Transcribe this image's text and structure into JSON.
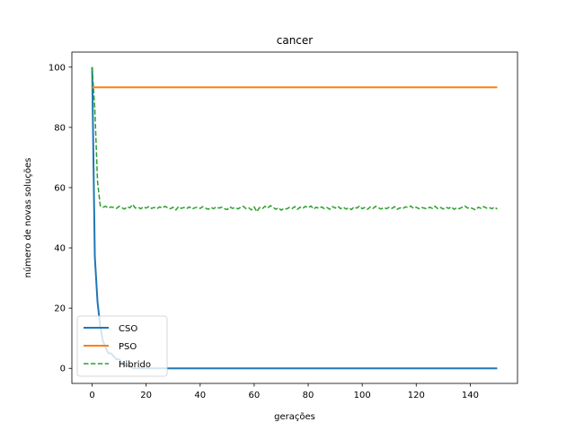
{
  "chart_data": {
    "type": "line",
    "title": "cancer",
    "xlabel": "gerações",
    "ylabel": "número de novas soluções",
    "xlim": [
      -7.5,
      157.5
    ],
    "ylim": [
      -5,
      105
    ],
    "xticks": [
      0,
      20,
      40,
      60,
      80,
      100,
      120,
      140
    ],
    "yticks": [
      0,
      20,
      40,
      60,
      80,
      100
    ],
    "grid": false,
    "legend": "lower-left",
    "series": [
      {
        "name": "CSO",
        "color": "#1f77b4",
        "style": "solid",
        "x": [
          0,
          1,
          2,
          3,
          4,
          5,
          6,
          7,
          8,
          9,
          10,
          11,
          12,
          13,
          14,
          15,
          16,
          17,
          18,
          19,
          20,
          30,
          40,
          60,
          80,
          100,
          120,
          140,
          150
        ],
        "y": [
          100,
          37,
          22,
          14,
          9,
          7,
          5,
          5,
          4,
          3,
          3,
          2,
          1,
          1,
          1,
          0,
          0,
          0,
          0,
          0,
          0,
          0,
          0,
          0,
          0,
          0,
          0,
          0,
          0
        ]
      },
      {
        "name": "PSO",
        "color": "#ff7f0e",
        "style": "solid",
        "x": [
          0,
          150
        ],
        "y": [
          93.3,
          93.3
        ]
      },
      {
        "name": "Hibrido",
        "color": "#2ca02c",
        "style": "dashed",
        "x": [
          0,
          1,
          2,
          3,
          4,
          5,
          6,
          7,
          8,
          9,
          10,
          11,
          12,
          13,
          14,
          15,
          16,
          17,
          18,
          19,
          20,
          21,
          22,
          23,
          24,
          25,
          26,
          27,
          28,
          29,
          30,
          31,
          32,
          33,
          34,
          35,
          36,
          37,
          38,
          39,
          40,
          41,
          42,
          43,
          44,
          45,
          46,
          47,
          48,
          49,
          50,
          51,
          52,
          53,
          54,
          55,
          56,
          57,
          58,
          59,
          60,
          61,
          62,
          63,
          64,
          65,
          66,
          67,
          68,
          69,
          70,
          71,
          72,
          73,
          74,
          75,
          76,
          77,
          78,
          79,
          80,
          81,
          82,
          83,
          84,
          85,
          86,
          87,
          88,
          89,
          90,
          91,
          92,
          93,
          94,
          95,
          96,
          97,
          98,
          99,
          100,
          101,
          102,
          103,
          104,
          105,
          106,
          107,
          108,
          109,
          110,
          111,
          112,
          113,
          114,
          115,
          116,
          117,
          118,
          119,
          120,
          121,
          122,
          123,
          124,
          125,
          126,
          127,
          128,
          129,
          130,
          131,
          132,
          133,
          134,
          135,
          136,
          137,
          138,
          139,
          140,
          141,
          142,
          143,
          144,
          145,
          146,
          147,
          148,
          149,
          150
        ],
        "y": [
          100,
          86,
          62,
          54,
          53.5,
          53.8,
          53.2,
          53.6,
          53.4,
          53.1,
          53.8,
          53.3,
          52.9,
          53.6,
          53.3,
          54.4,
          53.2,
          53.5,
          53.0,
          53.6,
          53.2,
          53.7,
          53.1,
          53.4,
          53.0,
          53.6,
          53.2,
          53.8,
          53.3,
          53.0,
          53.5,
          52.6,
          53.7,
          53.1,
          53.4,
          53.0,
          53.6,
          52.9,
          53.3,
          53.5,
          53.1,
          53.7,
          53.2,
          52.8,
          53.4,
          53.0,
          53.6,
          53.2,
          53.5,
          53.0,
          52.7,
          53.6,
          53.1,
          53.4,
          52.9,
          53.5,
          53.8,
          53.0,
          53.3,
          52.6,
          53.6,
          52.0,
          53.4,
          53.0,
          53.8,
          53.2,
          54.0,
          53.5,
          52.8,
          53.3,
          52.5,
          53.1,
          52.9,
          53.4,
          53.0,
          53.7,
          52.8,
          53.5,
          53.1,
          53.8,
          53.3,
          53.9,
          52.9,
          53.5,
          53.1,
          53.6,
          53.0,
          53.4,
          52.8,
          53.7,
          53.2,
          53.8,
          53.0,
          53.5,
          52.9,
          53.3,
          52.7,
          53.6,
          53.2,
          53.9,
          53.0,
          53.4,
          52.8,
          53.6,
          53.1,
          53.8,
          53.3,
          52.9,
          53.4,
          53.0,
          53.5,
          53.1,
          53.7,
          52.8,
          53.3,
          53.0,
          53.6,
          53.4,
          53.9,
          53.1,
          53.5,
          53.0,
          53.4,
          53.2,
          52.9,
          53.5,
          53.1,
          53.8,
          53.0,
          53.4,
          52.9,
          53.5,
          53.1,
          53.6,
          52.8,
          53.3,
          53.0,
          53.5,
          53.9,
          53.2,
          53.4,
          53.0,
          52.6,
          53.5,
          53.1,
          53.7,
          53.2,
          53.4,
          53.0,
          53.5,
          52.9
        ]
      }
    ]
  }
}
